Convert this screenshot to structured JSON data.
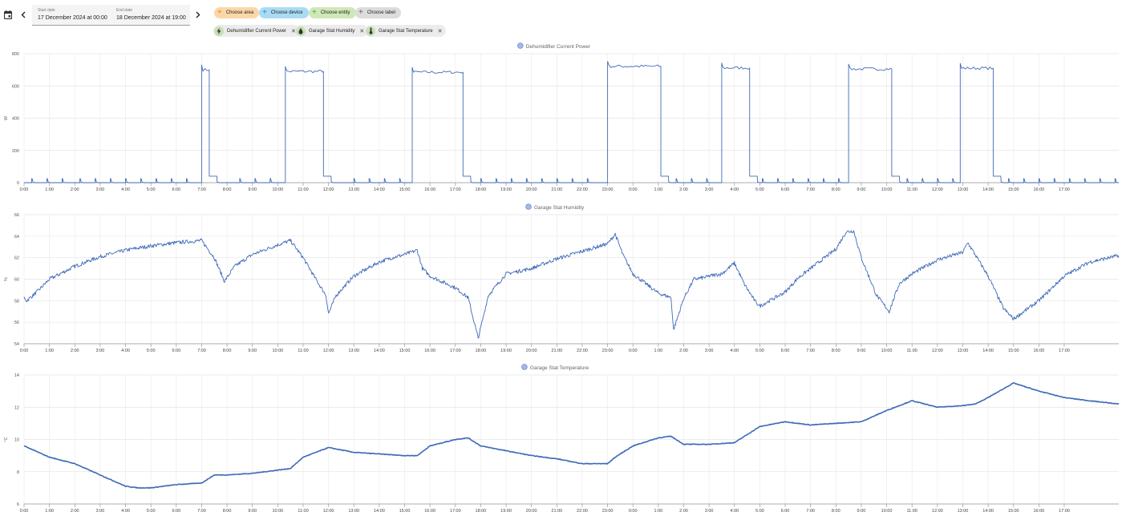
{
  "header": {
    "start_label": "Start date",
    "start_value": "17 December 2024 at 00:00",
    "end_label": "End date",
    "end_value": "18 December 2024 at 19:00"
  },
  "target_chips": [
    {
      "label": "Choose area",
      "bg": "#fbd7a8",
      "plus": "#e08a1e"
    },
    {
      "label": "Choose device",
      "bg": "#a9dcf4",
      "plus": "#1a8fc6"
    },
    {
      "label": "Choose entity",
      "bg": "#cfe8b8",
      "plus": "#5a9e2f"
    },
    {
      "label": "Choose label",
      "bg": "#dcdcdc",
      "plus": "#616161"
    }
  ],
  "entity_chips": [
    {
      "label": "Dehumidifier Current Power",
      "icon": "lightning-icon"
    },
    {
      "label": "Garage Stat Humidity",
      "icon": "water-drop-icon"
    },
    {
      "label": "Garage Stat Temperature",
      "icon": "thermometer-icon"
    }
  ],
  "chart_data": [
    {
      "type": "line",
      "title": "Dehumidifier Current Power",
      "ylabel": "W",
      "ylim": [
        0,
        800
      ],
      "yticks": [
        0,
        200,
        400,
        600,
        800
      ],
      "xlim": [
        0,
        43.15
      ],
      "x_tick_labels": [
        "0:00",
        "1:00",
        "2:00",
        "3:00",
        "4:00",
        "5:00",
        "6:00",
        "7:00",
        "8:00",
        "9:00",
        "10:00",
        "11:00",
        "12:00",
        "13:00",
        "14:00",
        "15:00",
        "16:00",
        "17:00",
        "18:00",
        "19:00",
        "20:00",
        "21:00",
        "22:00",
        "23:00",
        "0:00",
        "1:00",
        "2:00",
        "3:00",
        "4:00",
        "5:00",
        "6:00",
        "7:00",
        "8:00",
        "9:00",
        "10:00",
        "11:00",
        "12:00",
        "13:00",
        "14:00",
        "15:00",
        "16:00",
        "17:00"
      ],
      "color": "#3f6ab8",
      "on_periods": [
        [
          7.0,
          7.3,
          700
        ],
        [
          10.3,
          11.8,
          690
        ],
        [
          15.3,
          17.3,
          685
        ],
        [
          23.0,
          25.1,
          722
        ],
        [
          27.5,
          28.6,
          712
        ],
        [
          32.5,
          34.2,
          705
        ],
        [
          36.9,
          38.2,
          710
        ]
      ],
      "idle_spikes": [
        0.3,
        0.9,
        1.5,
        2.2,
        2.8,
        3.4,
        4.0,
        4.6,
        5.2,
        5.8,
        6.4,
        8.5,
        9.1,
        9.7,
        13.0,
        13.6,
        14.2,
        14.8,
        18.0,
        18.6,
        19.2,
        19.8,
        20.4,
        21.0,
        21.6,
        22.2,
        25.7,
        26.3,
        26.9,
        29.1,
        29.7,
        30.3,
        30.9,
        31.5,
        32.1,
        34.8,
        35.4,
        36.0,
        36.6,
        38.8,
        39.4,
        40.0,
        40.6,
        41.2,
        41.8,
        42.4,
        43.0
      ]
    },
    {
      "type": "line",
      "title": "Garage Stat Humidity",
      "ylabel": "%",
      "ylim": [
        54,
        66
      ],
      "yticks": [
        54,
        56,
        58,
        60,
        62,
        64,
        66
      ],
      "xlim": [
        0,
        43.15
      ],
      "x_tick_labels": [
        "0:00",
        "1:00",
        "2:00",
        "3:00",
        "4:00",
        "5:00",
        "6:00",
        "7:00",
        "8:00",
        "9:00",
        "10:00",
        "11:00",
        "12:00",
        "13:00",
        "14:00",
        "15:00",
        "16:00",
        "17:00",
        "18:00",
        "19:00",
        "20:00",
        "21:00",
        "22:00",
        "23:00",
        "0:00",
        "1:00",
        "2:00",
        "3:00",
        "4:00",
        "5:00",
        "6:00",
        "7:00",
        "8:00",
        "9:00",
        "10:00",
        "11:00",
        "12:00",
        "13:00",
        "14:00",
        "15:00",
        "16:00",
        "17:00"
      ],
      "color": "#3f6ab8",
      "x": [
        0,
        0.1,
        0.5,
        1.0,
        2.0,
        3.0,
        4.0,
        5.0,
        6.0,
        7.0,
        7.5,
        7.9,
        8.3,
        9.0,
        10.0,
        10.5,
        11.0,
        11.5,
        11.9,
        12.0,
        12.3,
        13.0,
        14.0,
        14.5,
        15.0,
        15.5,
        15.7,
        16.0,
        17.0,
        17.5,
        17.9,
        18.3,
        19.0,
        20.0,
        21.0,
        22.0,
        23.0,
        23.3,
        23.6,
        24.0,
        25.0,
        25.5,
        25.6,
        26.0,
        26.4,
        26.9,
        27.0,
        27.5,
        28.0,
        28.4,
        28.8,
        29.0,
        30.0,
        30.5,
        31.0,
        32.0,
        32.4,
        32.7,
        33.0,
        33.6,
        34.1,
        34.5,
        35.0,
        36.0,
        37.0,
        37.2,
        38.0,
        38.6,
        39.0,
        40.0,
        41.0,
        42.0,
        43.15
      ],
      "y": [
        58.2,
        58.0,
        58.8,
        60.0,
        61.2,
        62.1,
        62.7,
        63.1,
        63.4,
        63.6,
        62.0,
        59.8,
        61.2,
        62.3,
        63.2,
        63.6,
        62.0,
        60.0,
        58.5,
        56.8,
        58.5,
        60.3,
        61.6,
        62.0,
        62.3,
        62.7,
        61.0,
        60.3,
        59.2,
        58.3,
        54.5,
        58.5,
        60.5,
        61.0,
        61.9,
        62.6,
        63.3,
        64.2,
        62.3,
        60.5,
        58.7,
        58.3,
        55.3,
        58.2,
        60.0,
        60.2,
        60.3,
        60.5,
        61.5,
        59.5,
        58.0,
        57.5,
        58.8,
        60.1,
        61.0,
        62.8,
        64.4,
        64.5,
        62.0,
        58.5,
        57.0,
        59.6,
        60.5,
        61.8,
        62.5,
        63.4,
        60.3,
        57.3,
        56.3,
        58.0,
        60.3,
        61.6,
        62.2
      ]
    },
    {
      "type": "line",
      "title": "Garage Stat Temperature",
      "ylabel": "°C",
      "ylim": [
        6,
        14
      ],
      "yticks": [
        6,
        8,
        10,
        12,
        14
      ],
      "xlim": [
        0,
        43.15
      ],
      "x_tick_labels": [
        "0:00",
        "1:00",
        "2:00",
        "3:00",
        "4:00",
        "5:00",
        "6:00",
        "7:00",
        "8:00",
        "9:00",
        "10:00",
        "11:00",
        "12:00",
        "13:00",
        "14:00",
        "15:00",
        "16:00",
        "17:00",
        "18:00",
        "19:00",
        "20:00",
        "21:00",
        "22:00",
        "23:00",
        "0:00",
        "1:00",
        "2:00",
        "3:00",
        "4:00",
        "5:00",
        "6:00",
        "7:00",
        "8:00",
        "9:00",
        "10:00",
        "11:00",
        "12:00",
        "13:00",
        "14:00",
        "15:00",
        "16:00",
        "17:00"
      ],
      "color": "#3f6ab8",
      "x": [
        0,
        1.0,
        2.0,
        3.0,
        4.0,
        4.5,
        5.0,
        6.0,
        7.0,
        7.5,
        8.0,
        9.0,
        10.0,
        10.5,
        11.0,
        12.0,
        13.0,
        14.0,
        15.0,
        15.5,
        16.0,
        17.0,
        17.5,
        18.0,
        19.0,
        20.0,
        21.0,
        22.0,
        23.0,
        23.3,
        24.0,
        25.0,
        25.5,
        26.0,
        27.0,
        28.0,
        29.0,
        30.0,
        31.0,
        32.0,
        33.0,
        34.0,
        35.0,
        36.0,
        37.0,
        37.5,
        38.0,
        39.0,
        40.0,
        41.0,
        42.0,
        43.15
      ],
      "y": [
        9.6,
        8.9,
        8.5,
        7.8,
        7.1,
        7.0,
        7.0,
        7.2,
        7.3,
        7.8,
        7.8,
        7.9,
        8.1,
        8.2,
        8.9,
        9.5,
        9.2,
        9.1,
        9.0,
        9.0,
        9.6,
        10.0,
        10.1,
        9.6,
        9.3,
        9.0,
        8.8,
        8.5,
        8.5,
        8.9,
        9.6,
        10.1,
        10.2,
        9.7,
        9.7,
        9.8,
        10.8,
        11.1,
        10.9,
        11.0,
        11.1,
        11.8,
        12.4,
        12.0,
        12.1,
        12.2,
        12.6,
        13.5,
        13.0,
        12.6,
        12.4,
        12.2
      ]
    }
  ]
}
